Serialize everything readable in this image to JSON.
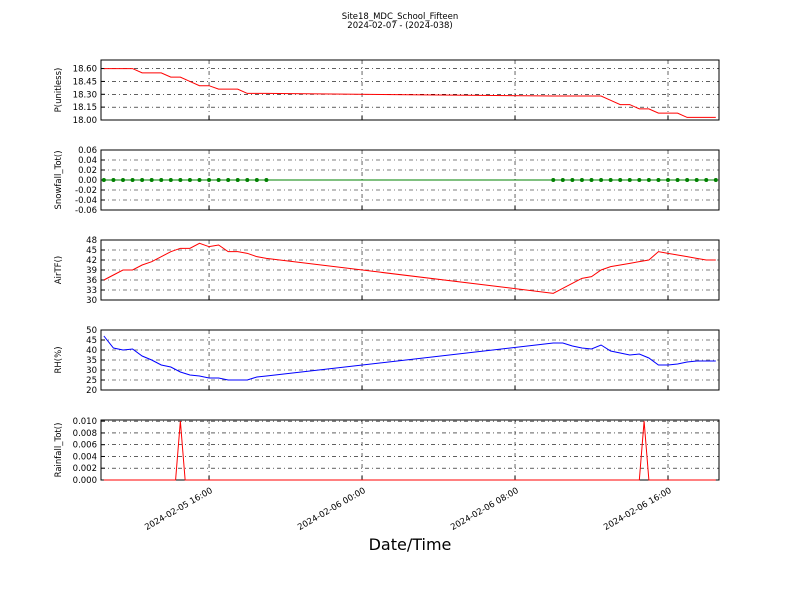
{
  "chart_data": [
    {
      "type": "line",
      "title": "Site18_MDC_School_Fifteen",
      "subtitle": "2024-02-07 - (2024-038)",
      "ylabel": "P(unitless)",
      "color": "#ff0000",
      "grid": true,
      "x": [
        "2024-02-05 10:30",
        "2024-02-05 11:00",
        "2024-02-05 11:30",
        "2024-02-05 12:00",
        "2024-02-05 12:30",
        "2024-02-05 13:00",
        "2024-02-05 13:30",
        "2024-02-05 14:00",
        "2024-02-05 14:30",
        "2024-02-05 15:00",
        "2024-02-05 15:30",
        "2024-02-05 16:00",
        "2024-02-05 16:30",
        "2024-02-05 17:00",
        "2024-02-05 17:30",
        "2024-02-05 18:00",
        "2024-02-05 18:30",
        "2024-02-05 19:00",
        "2024-02-06 10:00",
        "2024-02-06 10:30",
        "2024-02-06 11:00",
        "2024-02-06 11:30",
        "2024-02-06 12:00",
        "2024-02-06 12:30",
        "2024-02-06 13:00",
        "2024-02-06 13:30",
        "2024-02-06 14:00",
        "2024-02-06 14:30",
        "2024-02-06 15:00",
        "2024-02-06 15:30",
        "2024-02-06 16:00",
        "2024-02-06 16:30",
        "2024-02-06 17:00",
        "2024-02-06 17:30",
        "2024-02-06 18:00",
        "2024-02-06 18:30"
      ],
      "values": [
        18.6,
        18.6,
        18.6,
        18.6,
        18.55,
        18.55,
        18.55,
        18.5,
        18.5,
        18.45,
        18.4,
        18.4,
        18.36,
        18.36,
        18.36,
        18.31,
        18.31,
        18.31,
        18.28,
        18.28,
        18.28,
        18.28,
        18.28,
        18.28,
        18.23,
        18.18,
        18.18,
        18.13,
        18.13,
        18.08,
        18.08,
        18.08,
        18.03,
        18.03,
        18.03,
        18.03
      ],
      "xlim": [
        "2024-02-05 10:21",
        "2024-02-06 18:40"
      ],
      "xticks": [
        "2024-02-05 16:00",
        "2024-02-06 00:00",
        "2024-02-06 08:00",
        "2024-02-06 16:00"
      ],
      "ylim": [
        18.0,
        18.7
      ],
      "yticks": [
        {
          "value": 18.0,
          "label": "18.00"
        },
        {
          "value": 18.15,
          "label": "18.15"
        },
        {
          "value": 18.3,
          "label": "18.30"
        },
        {
          "value": 18.45,
          "label": "18.45"
        },
        {
          "value": 18.6,
          "label": "18.60"
        }
      ]
    },
    {
      "type": "line",
      "ylabel": "Snowfall_Tot()",
      "color": "#008000",
      "markers": true,
      "grid": true,
      "x": [
        "2024-02-05 10:30",
        "2024-02-05 11:00",
        "2024-02-05 11:30",
        "2024-02-05 12:00",
        "2024-02-05 12:30",
        "2024-02-05 13:00",
        "2024-02-05 13:30",
        "2024-02-05 14:00",
        "2024-02-05 14:30",
        "2024-02-05 15:00",
        "2024-02-05 15:30",
        "2024-02-05 16:00",
        "2024-02-05 16:30",
        "2024-02-05 17:00",
        "2024-02-05 17:30",
        "2024-02-05 18:00",
        "2024-02-05 18:30",
        "2024-02-05 19:00",
        "2024-02-06 10:00",
        "2024-02-06 10:30",
        "2024-02-06 11:00",
        "2024-02-06 11:30",
        "2024-02-06 12:00",
        "2024-02-06 12:30",
        "2024-02-06 13:00",
        "2024-02-06 13:30",
        "2024-02-06 14:00",
        "2024-02-06 14:30",
        "2024-02-06 15:00",
        "2024-02-06 15:30",
        "2024-02-06 16:00",
        "2024-02-06 16:30",
        "2024-02-06 17:00",
        "2024-02-06 17:30",
        "2024-02-06 18:00",
        "2024-02-06 18:30"
      ],
      "values": [
        0,
        0,
        0,
        0,
        0,
        0,
        0,
        0,
        0,
        0,
        0,
        0,
        0,
        0,
        0,
        0,
        0,
        0,
        0,
        0,
        0,
        0,
        0,
        0,
        0,
        0,
        0,
        0,
        0,
        0,
        0,
        0,
        0,
        0,
        0,
        0
      ],
      "xlim": [
        "2024-02-05 10:21",
        "2024-02-06 18:40"
      ],
      "xticks": [
        "2024-02-05 16:00",
        "2024-02-06 00:00",
        "2024-02-06 08:00",
        "2024-02-06 16:00"
      ],
      "ylim": [
        -0.06,
        0.06
      ],
      "yticks": [
        -0.06,
        -0.04,
        -0.02,
        {
          "value": 0,
          "label": "0.00"
        },
        0.02,
        0.04,
        0.06
      ]
    },
    {
      "type": "line",
      "ylabel": "AirTF()",
      "color": "#ff0000",
      "grid": true,
      "x": [
        "2024-02-05 10:30",
        "2024-02-05 11:00",
        "2024-02-05 11:30",
        "2024-02-05 12:00",
        "2024-02-05 12:30",
        "2024-02-05 13:00",
        "2024-02-05 13:30",
        "2024-02-05 14:00",
        "2024-02-05 14:30",
        "2024-02-05 15:00",
        "2024-02-05 15:30",
        "2024-02-05 16:00",
        "2024-02-05 16:30",
        "2024-02-05 17:00",
        "2024-02-05 17:30",
        "2024-02-05 18:00",
        "2024-02-05 18:30",
        "2024-02-05 19:00",
        "2024-02-06 10:00",
        "2024-02-06 10:30",
        "2024-02-06 11:00",
        "2024-02-06 11:30",
        "2024-02-06 12:00",
        "2024-02-06 12:30",
        "2024-02-06 13:00",
        "2024-02-06 13:30",
        "2024-02-06 14:00",
        "2024-02-06 14:30",
        "2024-02-06 15:00",
        "2024-02-06 15:30",
        "2024-02-06 16:00",
        "2024-02-06 16:30",
        "2024-02-06 17:00",
        "2024-02-06 17:30",
        "2024-02-06 18:00",
        "2024-02-06 18:30"
      ],
      "values": [
        36,
        37.5,
        39,
        39,
        40.5,
        41.5,
        43,
        44.5,
        45.5,
        45.5,
        47,
        46,
        46.5,
        44.5,
        44.5,
        44,
        43,
        42.5,
        32,
        33.5,
        35,
        36.5,
        37,
        39,
        40,
        40.5,
        41,
        41.5,
        42,
        44.5,
        44,
        43.5,
        43,
        42.5,
        42,
        42
      ],
      "xlim": [
        "2024-02-05 10:21",
        "2024-02-06 18:40"
      ],
      "xticks": [
        "2024-02-05 16:00",
        "2024-02-06 00:00",
        "2024-02-06 08:00",
        "2024-02-06 16:00"
      ],
      "ylim": [
        30,
        48
      ],
      "yticks": [
        30,
        33,
        36,
        39,
        42,
        45,
        48
      ]
    },
    {
      "type": "line",
      "ylabel": "RH(%)",
      "color": "#0000ff",
      "grid": true,
      "x": [
        "2024-02-05 10:30",
        "2024-02-05 11:00",
        "2024-02-05 11:30",
        "2024-02-05 12:00",
        "2024-02-05 12:30",
        "2024-02-05 13:00",
        "2024-02-05 13:30",
        "2024-02-05 14:00",
        "2024-02-05 14:30",
        "2024-02-05 15:00",
        "2024-02-05 15:30",
        "2024-02-05 16:00",
        "2024-02-05 16:30",
        "2024-02-05 17:00",
        "2024-02-05 17:30",
        "2024-02-05 18:00",
        "2024-02-05 18:30",
        "2024-02-05 19:00",
        "2024-02-06 10:00",
        "2024-02-06 10:30",
        "2024-02-06 11:00",
        "2024-02-06 11:30",
        "2024-02-06 12:00",
        "2024-02-06 12:30",
        "2024-02-06 13:00",
        "2024-02-06 13:30",
        "2024-02-06 14:00",
        "2024-02-06 14:30",
        "2024-02-06 15:00",
        "2024-02-06 15:30",
        "2024-02-06 16:00",
        "2024-02-06 16:30",
        "2024-02-06 17:00",
        "2024-02-06 17:30",
        "2024-02-06 18:00",
        "2024-02-06 18:30"
      ],
      "values": [
        47,
        41,
        40,
        40.5,
        37,
        35,
        32.5,
        31.5,
        29,
        27.5,
        27,
        26,
        26,
        25,
        25,
        25,
        26.5,
        27,
        43.5,
        43.5,
        42,
        41,
        40.5,
        42.5,
        39.5,
        38.5,
        37.5,
        38,
        36,
        32.5,
        32.5,
        33,
        34,
        34.5,
        34.5,
        34.5
      ],
      "xlim": [
        "2024-02-05 10:21",
        "2024-02-06 18:40"
      ],
      "xticks": [
        "2024-02-05 16:00",
        "2024-02-06 00:00",
        "2024-02-06 08:00",
        "2024-02-06 16:00"
      ],
      "ylim": [
        20,
        50
      ],
      "yticks": [
        20,
        25,
        30,
        35,
        40,
        45,
        50
      ]
    },
    {
      "type": "line",
      "ylabel": "Rainfall_Tot()",
      "xlabel": "Date/Time",
      "color": "#ff0000",
      "grid": true,
      "x": [
        "2024-02-05 10:30",
        "2024-02-05 14:15",
        "2024-02-05 14:30",
        "2024-02-05 14:45",
        "2024-02-05 19:00",
        "2024-02-06 10:00",
        "2024-02-06 14:30",
        "2024-02-06 14:45",
        "2024-02-06 15:00",
        "2024-02-06 18:30"
      ],
      "values": [
        0,
        0,
        0.01,
        0,
        0,
        0,
        0,
        0.01,
        0,
        0
      ],
      "xlim": [
        "2024-02-05 10:21",
        "2024-02-06 18:40"
      ],
      "xticks": [
        "2024-02-05 16:00",
        "2024-02-06 00:00",
        "2024-02-06 08:00",
        "2024-02-06 16:00"
      ],
      "ylim": [
        0,
        0.0102
      ],
      "yticks": [
        {
          "value": 0,
          "label": "0.000"
        },
        {
          "value": 0.002,
          "label": "0.002"
        },
        {
          "value": 0.004,
          "label": "0.004"
        },
        {
          "value": 0.006,
          "label": "0.006"
        },
        {
          "value": 0.008,
          "label": "0.008"
        },
        {
          "value": 0.01,
          "label": "0.010"
        }
      ]
    }
  ]
}
